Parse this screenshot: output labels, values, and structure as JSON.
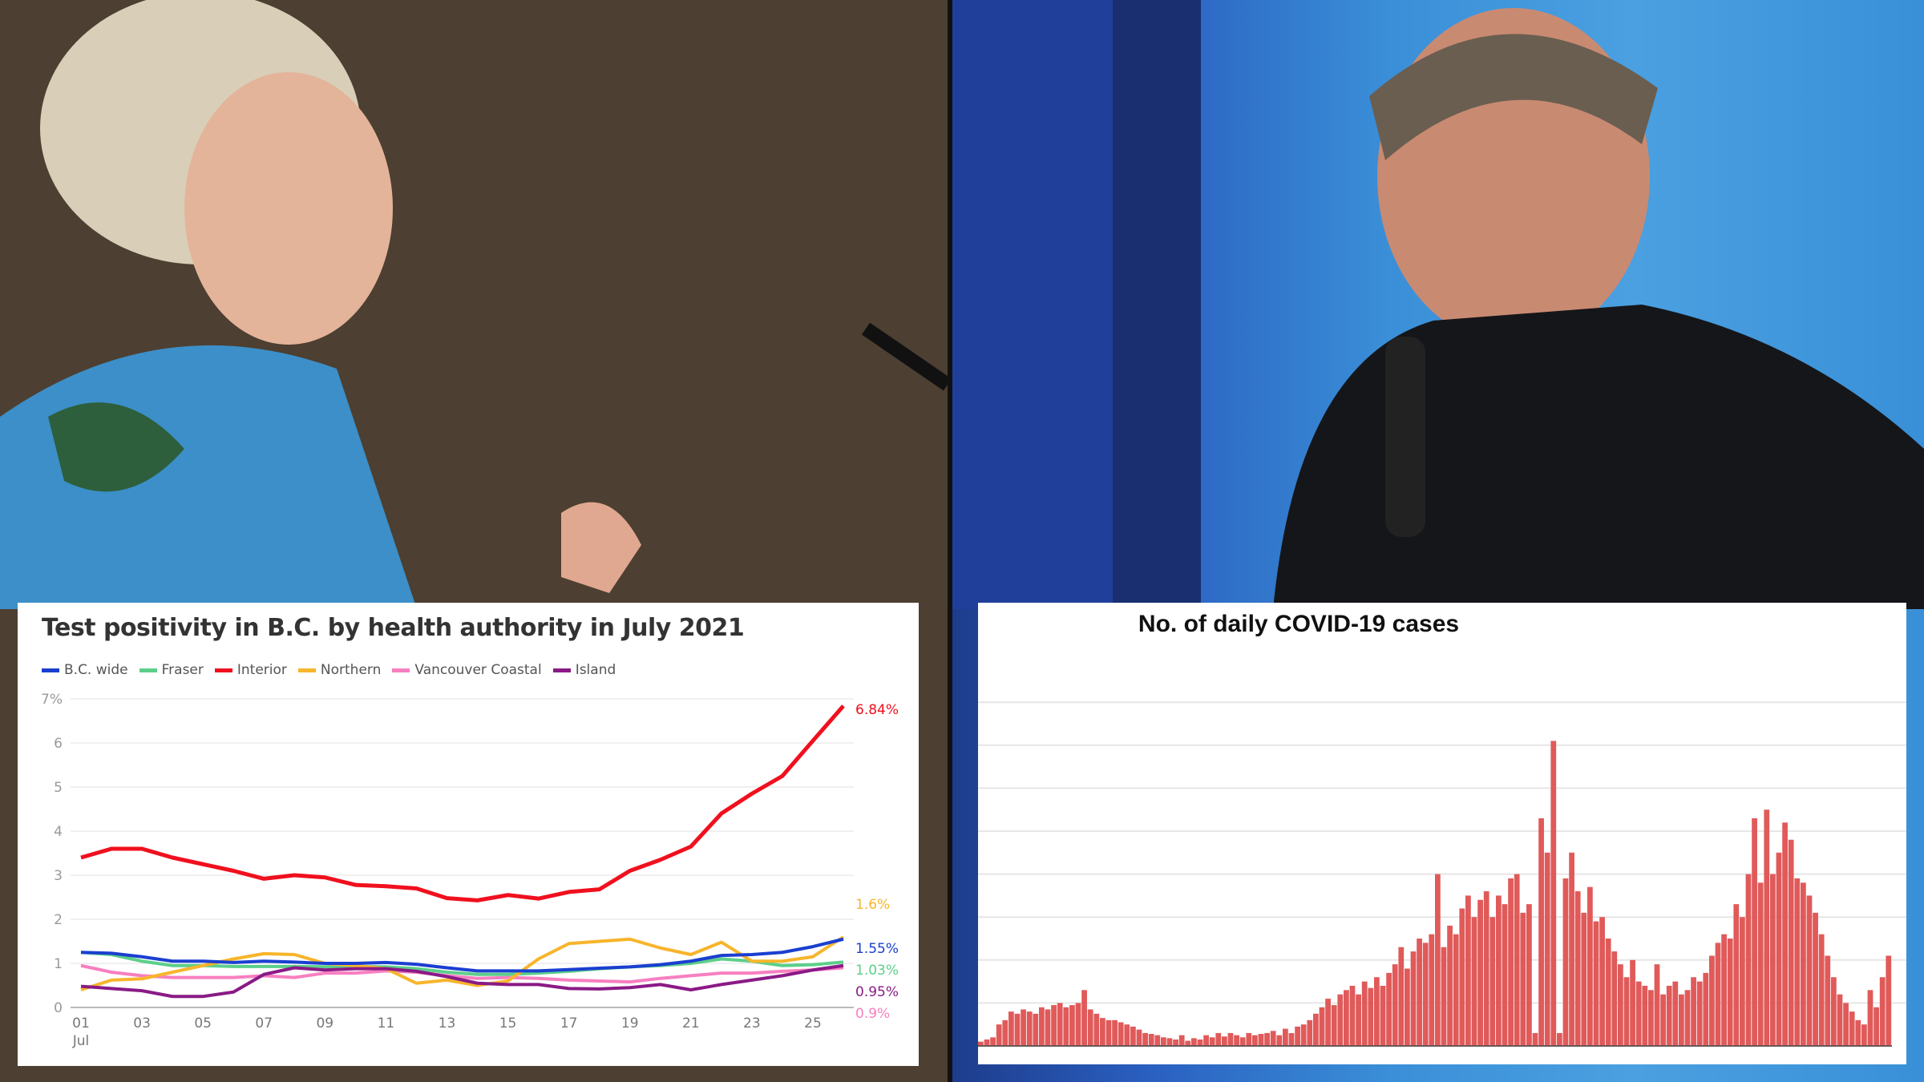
{
  "chart_data": [
    {
      "type": "line",
      "title": "Test positivity in B.C. by health authority in July 2021",
      "ylim": [
        0,
        7
      ],
      "yticks": [
        "0",
        "1",
        "2",
        "3",
        "4",
        "5",
        "6",
        "7%"
      ],
      "xticks": [
        "01",
        "03",
        "05",
        "07",
        "09",
        "11",
        "13",
        "15",
        "17",
        "19",
        "21",
        "23",
        "25"
      ],
      "xtick_sublabel": "Jul",
      "x": [
        1,
        2,
        3,
        4,
        5,
        6,
        7,
        8,
        9,
        10,
        11,
        12,
        13,
        14,
        15,
        16,
        17,
        18,
        19,
        20,
        21,
        22,
        23,
        24,
        25,
        26
      ],
      "grid": true,
      "legend": "top-left",
      "series": [
        {
          "name": "B.C. wide",
          "color": "#1a3fd0",
          "end_label": "1.55%",
          "values": [
            1.25,
            1.23,
            1.15,
            1.05,
            1.05,
            1.02,
            1.05,
            1.03,
            1.0,
            1.0,
            1.02,
            0.98,
            0.9,
            0.83,
            0.83,
            0.83,
            0.86,
            0.89,
            0.92,
            0.97,
            1.05,
            1.18,
            1.2,
            1.25,
            1.38,
            1.55
          ]
        },
        {
          "name": "Fraser",
          "color": "#5ccf8a",
          "end_label": "1.03%",
          "values": [
            1.25,
            1.2,
            1.05,
            0.95,
            0.95,
            0.93,
            0.93,
            0.93,
            0.92,
            0.93,
            0.92,
            0.88,
            0.8,
            0.75,
            0.75,
            0.78,
            0.82,
            0.88,
            0.92,
            0.95,
            1.0,
            1.1,
            1.05,
            0.95,
            0.97,
            1.03
          ]
        },
        {
          "name": "Interior",
          "color": "#f0101e",
          "end_label": "6.84%",
          "values": [
            3.4,
            3.6,
            3.6,
            3.4,
            3.25,
            3.1,
            2.92,
            3.0,
            2.95,
            2.78,
            2.75,
            2.7,
            2.48,
            2.43,
            2.55,
            2.47,
            2.62,
            2.68,
            3.1,
            3.35,
            3.65,
            4.4,
            4.85,
            5.25,
            6.05,
            6.84
          ]
        },
        {
          "name": "Northern",
          "color": "#f7b52c",
          "end_label": "1.6%",
          "values": [
            0.4,
            0.62,
            0.65,
            0.8,
            0.95,
            1.1,
            1.22,
            1.2,
            1.0,
            0.95,
            0.88,
            0.55,
            0.62,
            0.5,
            0.6,
            1.1,
            1.45,
            1.5,
            1.55,
            1.35,
            1.2,
            1.48,
            1.05,
            1.05,
            1.15,
            1.6
          ]
        },
        {
          "name": "Vancouver Coastal",
          "color": "#f77fc0",
          "end_label": "0.9%",
          "values": [
            0.95,
            0.8,
            0.72,
            0.68,
            0.68,
            0.68,
            0.72,
            0.68,
            0.78,
            0.78,
            0.83,
            0.8,
            0.72,
            0.66,
            0.68,
            0.66,
            0.62,
            0.6,
            0.58,
            0.66,
            0.72,
            0.78,
            0.78,
            0.82,
            0.85,
            0.9
          ]
        },
        {
          "name": "Island",
          "color": "#8a1a86",
          "end_label": "0.95%",
          "values": [
            0.48,
            0.43,
            0.38,
            0.25,
            0.25,
            0.35,
            0.75,
            0.9,
            0.85,
            0.88,
            0.88,
            0.82,
            0.7,
            0.55,
            0.52,
            0.52,
            0.43,
            0.42,
            0.45,
            0.52,
            0.4,
            0.52,
            0.62,
            0.72,
            0.85,
            0.95
          ]
        }
      ]
    },
    {
      "type": "bar",
      "title": "No. of daily COVID-19 cases",
      "color": "#e05a5a",
      "grid": true,
      "gridlines": 8,
      "ylim": [
        0,
        8.5
      ],
      "values": [
        0.1,
        0.15,
        0.2,
        0.5,
        0.6,
        0.8,
        0.75,
        0.85,
        0.8,
        0.75,
        0.9,
        0.85,
        0.95,
        1.0,
        0.9,
        0.95,
        1.0,
        1.3,
        0.85,
        0.75,
        0.65,
        0.6,
        0.6,
        0.55,
        0.5,
        0.45,
        0.38,
        0.3,
        0.28,
        0.25,
        0.2,
        0.18,
        0.15,
        0.25,
        0.12,
        0.18,
        0.15,
        0.25,
        0.2,
        0.3,
        0.22,
        0.3,
        0.25,
        0.2,
        0.3,
        0.25,
        0.28,
        0.3,
        0.35,
        0.25,
        0.4,
        0.3,
        0.45,
        0.5,
        0.6,
        0.75,
        0.9,
        1.1,
        0.95,
        1.2,
        1.3,
        1.4,
        1.2,
        1.5,
        1.35,
        1.6,
        1.4,
        1.7,
        1.9,
        2.3,
        1.8,
        2.2,
        2.5,
        2.4,
        2.6,
        4.0,
        2.3,
        2.8,
        2.6,
        3.2,
        3.5,
        3.0,
        3.4,
        3.6,
        3.0,
        3.5,
        3.3,
        3.9,
        4.0,
        3.1,
        3.3,
        0.3,
        5.3,
        4.5,
        7.1,
        0.3,
        3.9,
        4.5,
        3.6,
        3.1,
        3.7,
        2.9,
        3.0,
        2.5,
        2.2,
        1.9,
        1.6,
        2.0,
        1.5,
        1.4,
        1.3,
        1.9,
        1.2,
        1.4,
        1.5,
        1.2,
        1.3,
        1.6,
        1.5,
        1.7,
        2.1,
        2.4,
        2.6,
        2.5,
        3.3,
        3.0,
        4.0,
        5.3,
        3.8,
        5.5,
        4.0,
        4.5,
        5.2,
        4.8,
        3.9,
        3.8,
        3.5,
        3.1,
        2.6,
        2.1,
        1.6,
        1.2,
        1.0,
        0.8,
        0.6,
        0.5,
        1.3,
        0.9,
        1.6,
        2.1
      ]
    }
  ]
}
